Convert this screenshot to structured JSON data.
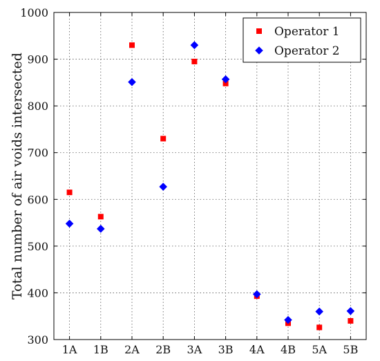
{
  "chart_data": {
    "type": "scatter",
    "categories": [
      "1A",
      "1B",
      "2A",
      "2B",
      "3A",
      "3B",
      "4A",
      "4B",
      "5A",
      "5B"
    ],
    "ylabel": "Total number of air voids intersected",
    "xlabel": "",
    "ylim": [
      300,
      1000
    ],
    "yticks": [
      300,
      400,
      500,
      600,
      700,
      800,
      900,
      1000
    ],
    "grid": true,
    "legend_position": "top-right",
    "series": [
      {
        "name": "Operator 1",
        "marker": "square",
        "color": "#ff0000",
        "values": [
          615,
          563,
          930,
          730,
          895,
          848,
          393,
          335,
          326,
          340
        ]
      },
      {
        "name": "Operator 2",
        "marker": "diamond",
        "color": "#0000ff",
        "values": [
          548,
          537,
          851,
          627,
          930,
          857,
          397,
          342,
          360,
          361
        ]
      }
    ]
  }
}
